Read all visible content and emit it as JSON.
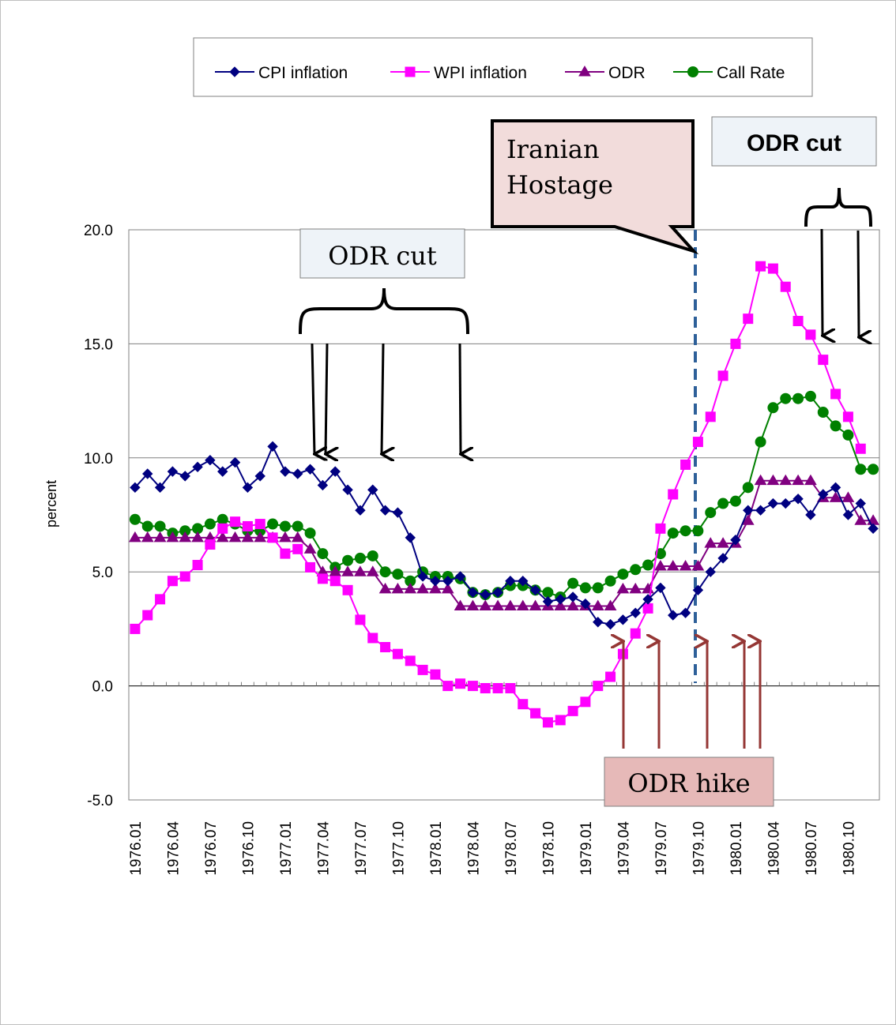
{
  "chart_data": {
    "type": "line",
    "ylabel": "percent",
    "ylim": [
      -5,
      20
    ],
    "yticks": [
      "20.0",
      "15.0",
      "10.0",
      "5.0",
      "0.0",
      "-5.0"
    ],
    "ytick_values": [
      20,
      15,
      10,
      5,
      0,
      -5
    ],
    "x_tick_labels": [
      "1976.01",
      "1976.04",
      "1976.07",
      "1976.10",
      "1977.01",
      "1977.04",
      "1977.07",
      "1977.10",
      "1978.01",
      "1978.04",
      "1978.07",
      "1978.10",
      "1979.01",
      "1979.04",
      "1979.07",
      "1979.10",
      "1980.01",
      "1980.04",
      "1980.07",
      "1980.10"
    ],
    "legend_position": "top",
    "grid": "horizontal",
    "series": [
      {
        "name": "CPI inflation",
        "color": "#000080",
        "marker": "diamond",
        "values": [
          8.7,
          9.3,
          8.7,
          9.4,
          9.2,
          9.6,
          9.9,
          9.4,
          9.8,
          8.7,
          9.2,
          10.5,
          9.4,
          9.3,
          9.5,
          8.8,
          9.4,
          8.6,
          7.7,
          8.6,
          7.7,
          7.6,
          6.5,
          4.8,
          4.6,
          4.6,
          4.8,
          4.1,
          4.0,
          4.1,
          4.6,
          4.6,
          4.2,
          3.7,
          3.8,
          3.9,
          3.6,
          2.8,
          2.7,
          2.9,
          3.2,
          3.8,
          4.3,
          3.1,
          3.2,
          4.2,
          5.0,
          5.6,
          6.4,
          7.7,
          7.7,
          8.0,
          8.0,
          8.2,
          7.5,
          8.4,
          8.7,
          7.5,
          8.0,
          6.9
        ]
      },
      {
        "name": "WPI inflation",
        "color": "#ff00ff",
        "marker": "square",
        "values": [
          2.5,
          3.1,
          3.8,
          4.6,
          4.8,
          5.3,
          6.2,
          6.9,
          7.2,
          7.0,
          7.1,
          6.5,
          5.8,
          6.0,
          5.2,
          4.7,
          4.6,
          4.2,
          2.9,
          2.1,
          1.7,
          1.4,
          1.1,
          0.7,
          0.5,
          0.0,
          0.1,
          0.0,
          -0.1,
          -0.1,
          -0.1,
          -0.8,
          -1.2,
          -1.6,
          -1.5,
          -1.1,
          -0.7,
          0.0,
          0.4,
          1.4,
          2.3,
          3.4,
          6.9,
          8.4,
          9.7,
          10.7,
          11.8,
          13.6,
          15.0,
          16.1,
          18.4,
          18.3,
          17.5,
          16.0,
          15.4,
          14.3,
          12.8,
          11.8,
          10.4,
          null
        ]
      },
      {
        "name": "ODR",
        "color": "#800080",
        "marker": "triangle",
        "values": [
          6.5,
          6.5,
          6.5,
          6.5,
          6.5,
          6.5,
          6.5,
          6.5,
          6.5,
          6.5,
          6.5,
          6.5,
          6.5,
          6.5,
          6.0,
          5.0,
          5.0,
          5.0,
          5.0,
          5.0,
          4.25,
          4.25,
          4.25,
          4.25,
          4.25,
          4.25,
          3.5,
          3.5,
          3.5,
          3.5,
          3.5,
          3.5,
          3.5,
          3.5,
          3.5,
          3.5,
          3.5,
          3.5,
          3.5,
          4.25,
          4.25,
          4.25,
          5.25,
          5.25,
          5.25,
          5.25,
          6.25,
          6.25,
          6.25,
          7.25,
          9.0,
          9.0,
          9.0,
          9.0,
          9.0,
          8.25,
          8.25,
          8.25,
          7.25,
          7.25
        ]
      },
      {
        "name": "Call Rate",
        "color": "#008000",
        "marker": "circle",
        "values": [
          7.3,
          7.0,
          7.0,
          6.7,
          6.8,
          6.9,
          7.1,
          7.3,
          7.1,
          6.8,
          6.8,
          7.1,
          7.0,
          7.0,
          6.7,
          5.8,
          5.2,
          5.5,
          5.6,
          5.7,
          5.0,
          4.9,
          4.6,
          5.0,
          4.8,
          4.8,
          4.7,
          4.1,
          4.0,
          4.1,
          4.4,
          4.4,
          4.2,
          4.1,
          3.9,
          4.5,
          4.3,
          4.3,
          4.6,
          4.9,
          5.1,
          5.3,
          5.8,
          6.7,
          6.8,
          6.8,
          7.6,
          8.0,
          8.1,
          8.7,
          10.7,
          12.2,
          12.6,
          12.6,
          12.7,
          12.0,
          11.4,
          11.0,
          9.5,
          9.5
        ]
      }
    ]
  },
  "annotations": {
    "odr_cut_1977": "ODR cut",
    "iranian_hostage": "Iranian\nHostage",
    "iranian_hostage_line1": "Iranian",
    "iranian_hostage_line2": "Hostage",
    "odr_cut_1980": "ODR cut",
    "odr_hike": "ODR hike"
  }
}
